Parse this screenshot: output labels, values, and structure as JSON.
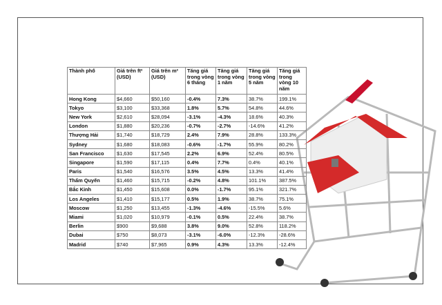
{
  "table": {
    "header": [
      "Thành phố",
      "Giá trên ft² (USD)",
      "Giá trên m² (USD)",
      "Tăng giá trong vòng 6 tháng",
      "Tăng giá trong vòng 1 năm",
      "Tăng giá trong vòng 5 năm",
      "Tăng giá trong vòng 10 năm"
    ],
    "rows": [
      [
        "Hong Kong",
        "$4,660",
        "$50,160",
        "-0.4%",
        "7.3%",
        "38.7%",
        "199.1%"
      ],
      [
        "Tokyo",
        "$3,100",
        "$33,368",
        "1.8%",
        "5.7%",
        "54.8%",
        "44.6%"
      ],
      [
        "New York",
        "$2,610",
        "$28,094",
        "-3.1%",
        "-4.3%",
        "18.6%",
        "40.3%"
      ],
      [
        "London",
        "$1,880",
        "$20,236",
        "-0.7%",
        "-2.7%",
        "-14.6%",
        "41.2%"
      ],
      [
        "Thượng Hải",
        "$1,740",
        "$18,729",
        "2.4%",
        "7.9%",
        "28.8%",
        "133.3%"
      ],
      [
        "Sydney",
        "$1,680",
        "$18,083",
        "-0.6%",
        "-1.7%",
        "55.9%",
        "80.2%"
      ],
      [
        "San Francisco",
        "$1,630",
        "$17,545",
        "2.2%",
        "6.9%",
        "52.4%",
        "80.5%"
      ],
      [
        "Singapore",
        "$1,590",
        "$17,115",
        "0.4%",
        "7.7%",
        "0.4%",
        "40.1%"
      ],
      [
        "Paris",
        "$1,540",
        "$16,576",
        "3.5%",
        "4.5%",
        "13.3%",
        "41.4%"
      ],
      [
        "Thẩm Quyến",
        "$1,460",
        "$15,715",
        "-0.2%",
        "4.8%",
        "101.1%",
        "387.5%"
      ],
      [
        "Bắc Kinh",
        "$1,450",
        "$15,608",
        "0.0%",
        "-1.7%",
        "95.1%",
        "321.7%"
      ],
      [
        "Los Angeles",
        "$1,410",
        "$15,177",
        "0.5%",
        "1.9%",
        "38.7%",
        "75.1%"
      ],
      [
        "Moscow",
        "$1,250",
        "$13,455",
        "-1.3%",
        "-4.6%",
        "-15.5%",
        "5.6%"
      ],
      [
        "Miami",
        "$1,020",
        "$10,979",
        "-0.1%",
        "0.5%",
        "22.4%",
        "38.7%"
      ],
      [
        "Berlin",
        "$900",
        "$9,688",
        "3.8%",
        "9.0%",
        "52.8%",
        "118.2%"
      ],
      [
        "Dubai",
        "$750",
        "$8,073",
        "-3.1%",
        "-6.0%",
        "-12.3%",
        "-28.6%"
      ],
      [
        "Madrid",
        "$740",
        "$7,965",
        "0.9%",
        "4.3%",
        "13.3%",
        "-12.4%"
      ]
    ]
  }
}
